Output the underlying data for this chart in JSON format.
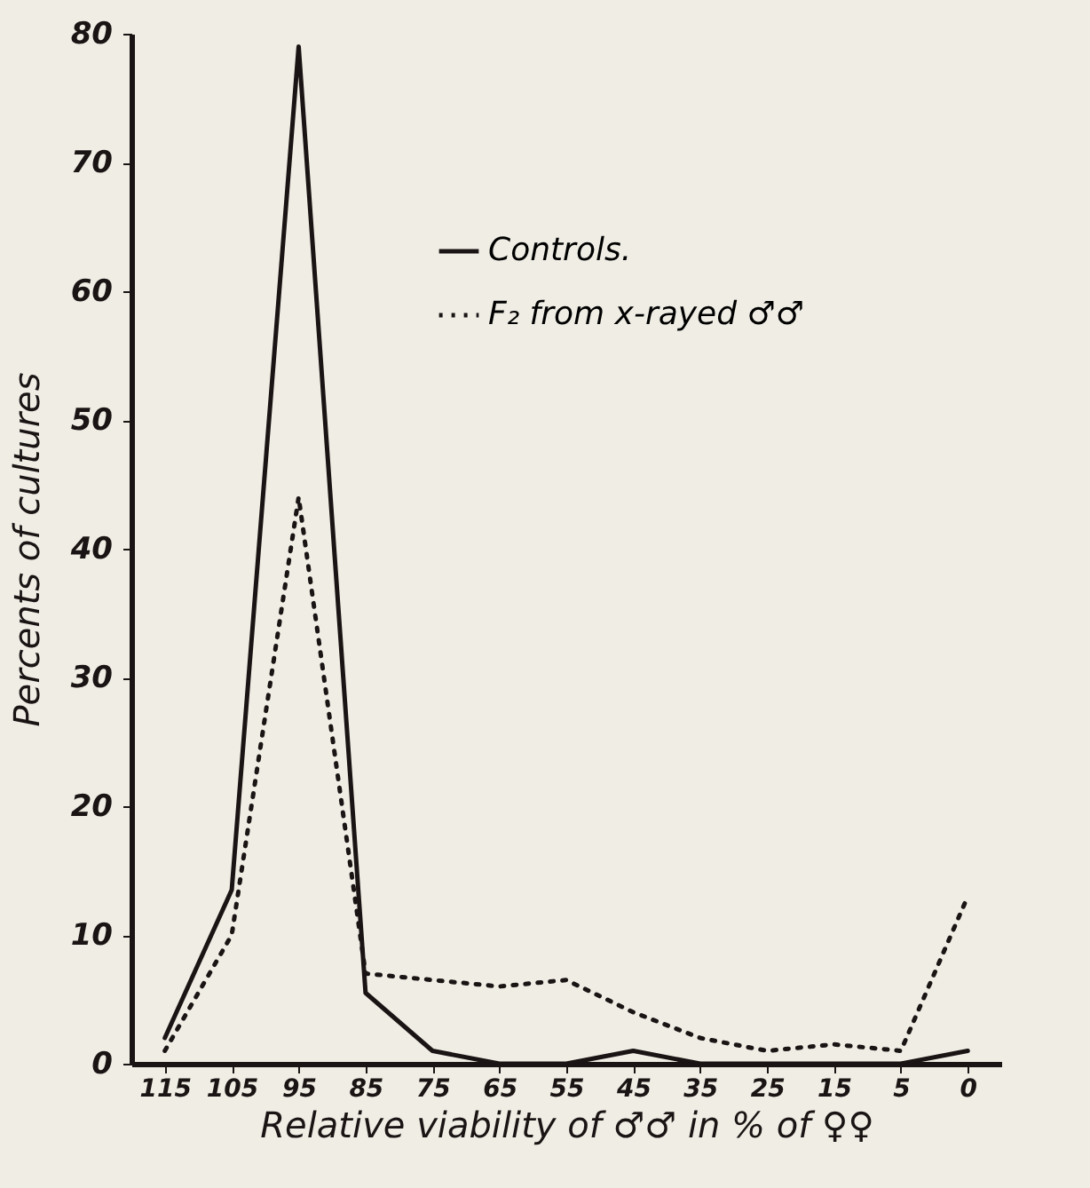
{
  "chart_data": {
    "type": "line",
    "xlabel": "Relative viability of ♂♂ in % of ♀♀",
    "ylabel": "Percents of cultures",
    "categories": [
      "115",
      "105",
      "95",
      "85",
      "75",
      "65",
      "55",
      "45",
      "35",
      "25",
      "15",
      "5",
      "0"
    ],
    "series": [
      {
        "name": "Controls.",
        "color": "#1a1414",
        "line_style": "solid",
        "values": [
          2,
          13.5,
          79,
          5.5,
          1,
          0,
          0,
          1,
          0,
          0,
          0,
          0,
          1
        ]
      },
      {
        "name": "F₂ from x-rayed ♂♂",
        "color": "#1a1414",
        "line_style": "dotted",
        "values": [
          1,
          10,
          44,
          7,
          6.5,
          6,
          6.5,
          4,
          2,
          1,
          1.5,
          1,
          13
        ]
      }
    ],
    "ylim": [
      0,
      80
    ],
    "yticks": [
      0,
      10,
      20,
      30,
      40,
      50,
      60,
      70,
      80
    ],
    "grid": false,
    "legend": "top right"
  }
}
